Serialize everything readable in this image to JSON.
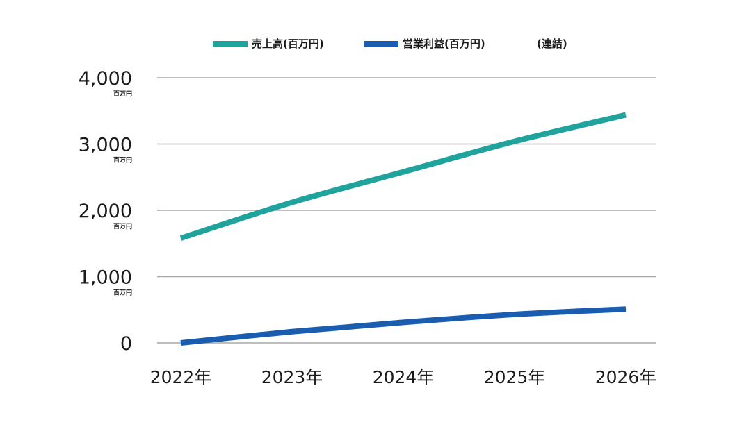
{
  "chart_data": {
    "type": "line",
    "categories": [
      "2022年",
      "2023年",
      "2024年",
      "2025年",
      "2026年"
    ],
    "series": [
      {
        "name": "売上高(百万円)",
        "color": "#1fa39c",
        "values": [
          1580,
          2120,
          2580,
          3040,
          3440
        ]
      },
      {
        "name": "営業利益(百万円)",
        "color": "#1a5db0",
        "values": [
          0,
          170,
          310,
          430,
          510
        ]
      }
    ],
    "legend_note": "(連結)",
    "legend_position": "top",
    "ylim": [
      0,
      4000
    ],
    "yticks": [
      {
        "value": 0,
        "label": "0",
        "unit": ""
      },
      {
        "value": 1000,
        "label": "1,000",
        "unit": "百万円"
      },
      {
        "value": 2000,
        "label": "2,000",
        "unit": "百万円"
      },
      {
        "value": 3000,
        "label": "3,000",
        "unit": "百万円"
      },
      {
        "value": 4000,
        "label": "4,000",
        "unit": "百万円"
      }
    ],
    "grid": true
  }
}
